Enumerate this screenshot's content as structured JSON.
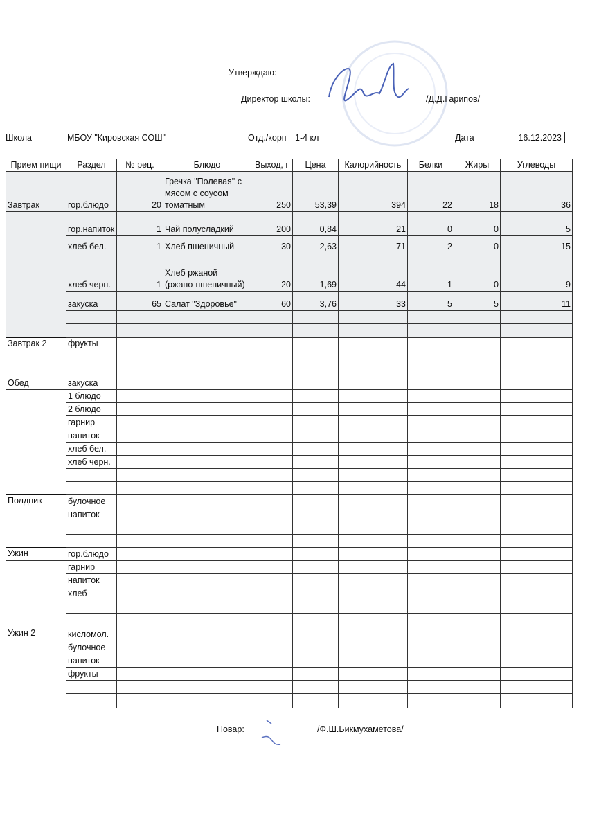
{
  "header": {
    "approve": "Утверждаю:",
    "director_label": "Директор школы:",
    "director_name": "/Д.Д.Гарипов/",
    "school_label": "Школа",
    "school": "МБОУ \"Кировская СОШ\"",
    "dept_label": "Отд./корп",
    "dept": "1-4 кл",
    "date_label": "Дата",
    "date": "16.12.2023"
  },
  "table": {
    "columns": [
      "Прием пищи",
      "Раздел",
      "№ рец.",
      "Блюдо",
      "Выход, г",
      "Цена",
      "Калорийность",
      "Белки",
      "Жиры",
      "Углеводы"
    ],
    "rows": [
      [
        "Завтрак",
        "гор.блюдо",
        20,
        "Гречка \"Полевая\" с мясом с соусом томатным",
        250,
        "53,39",
        394,
        22,
        18,
        36
      ],
      [
        null,
        "гор.напиток",
        1,
        "Чай полусладкий",
        200,
        "0,84",
        21,
        0,
        0,
        5
      ],
      [
        null,
        "хлеб бел.",
        1,
        "Хлеб пшеничный",
        30,
        "2,63",
        71,
        2,
        0,
        15
      ],
      [
        null,
        "хлеб черн.",
        1,
        "Хлеб ржаной (ржано-пшеничный)",
        20,
        "1,69",
        44,
        1,
        0,
        9
      ],
      [
        null,
        "закуска",
        65,
        "Салат \"Здоровье\"",
        60,
        "3,76",
        33,
        5,
        5,
        11
      ],
      [
        null,
        null,
        null,
        null,
        null,
        null,
        null,
        null,
        null,
        null
      ],
      [
        null,
        null,
        null,
        null,
        null,
        null,
        null,
        null,
        null,
        null
      ],
      [
        "Завтрак 2",
        "фрукты",
        null,
        null,
        null,
        null,
        null,
        null,
        null,
        null
      ],
      [
        null,
        null,
        null,
        null,
        null,
        null,
        null,
        null,
        null,
        null
      ],
      [
        null,
        null,
        null,
        null,
        null,
        null,
        null,
        null,
        null,
        null
      ],
      [
        "Обед",
        "закуска",
        null,
        null,
        null,
        null,
        null,
        null,
        null,
        null
      ],
      [
        null,
        "1 блюдо",
        null,
        null,
        null,
        null,
        null,
        null,
        null,
        null
      ],
      [
        null,
        "2 блюдо",
        null,
        null,
        null,
        null,
        null,
        null,
        null,
        null
      ],
      [
        null,
        "гарнир",
        null,
        null,
        null,
        null,
        null,
        null,
        null,
        null
      ],
      [
        null,
        "напиток",
        null,
        null,
        null,
        null,
        null,
        null,
        null,
        null
      ],
      [
        null,
        "хлеб бел.",
        null,
        null,
        null,
        null,
        null,
        null,
        null,
        null
      ],
      [
        null,
        "хлеб черн.",
        null,
        null,
        null,
        null,
        null,
        null,
        null,
        null
      ],
      [
        null,
        null,
        null,
        null,
        null,
        null,
        null,
        null,
        null,
        null
      ],
      [
        null,
        null,
        null,
        null,
        null,
        null,
        null,
        null,
        null,
        null
      ],
      [
        "Полдник",
        "булочное",
        null,
        null,
        null,
        null,
        null,
        null,
        null,
        null
      ],
      [
        null,
        "напиток",
        null,
        null,
        null,
        null,
        null,
        null,
        null,
        null
      ],
      [
        null,
        null,
        null,
        null,
        null,
        null,
        null,
        null,
        null,
        null
      ],
      [
        null,
        null,
        null,
        null,
        null,
        null,
        null,
        null,
        null,
        null
      ],
      [
        "Ужин",
        "гор.блюдо",
        null,
        null,
        null,
        null,
        null,
        null,
        null,
        null
      ],
      [
        null,
        "гарнир",
        null,
        null,
        null,
        null,
        null,
        null,
        null,
        null
      ],
      [
        null,
        "напиток",
        null,
        null,
        null,
        null,
        null,
        null,
        null,
        null
      ],
      [
        null,
        "хлеб",
        null,
        null,
        null,
        null,
        null,
        null,
        null,
        null
      ],
      [
        null,
        null,
        null,
        null,
        null,
        null,
        null,
        null,
        null,
        null
      ],
      [
        null,
        null,
        null,
        null,
        null,
        null,
        null,
        null,
        null,
        null
      ],
      [
        "Ужин 2",
        "кисломол.",
        null,
        null,
        null,
        null,
        null,
        null,
        null,
        null
      ],
      [
        null,
        "булочное",
        null,
        null,
        null,
        null,
        null,
        null,
        null,
        null
      ],
      [
        null,
        "напиток",
        null,
        null,
        null,
        null,
        null,
        null,
        null,
        null
      ],
      [
        null,
        "фрукты",
        null,
        null,
        null,
        null,
        null,
        null,
        null,
        null
      ],
      [
        null,
        null,
        null,
        null,
        null,
        null,
        null,
        null,
        null,
        null
      ],
      [
        null,
        null,
        null,
        null,
        null,
        null,
        null,
        null,
        null,
        null
      ]
    ]
  },
  "footer": {
    "cook_label": "Повар:",
    "cook_name": "/Ф.Ш.Бикмухаметова/"
  }
}
